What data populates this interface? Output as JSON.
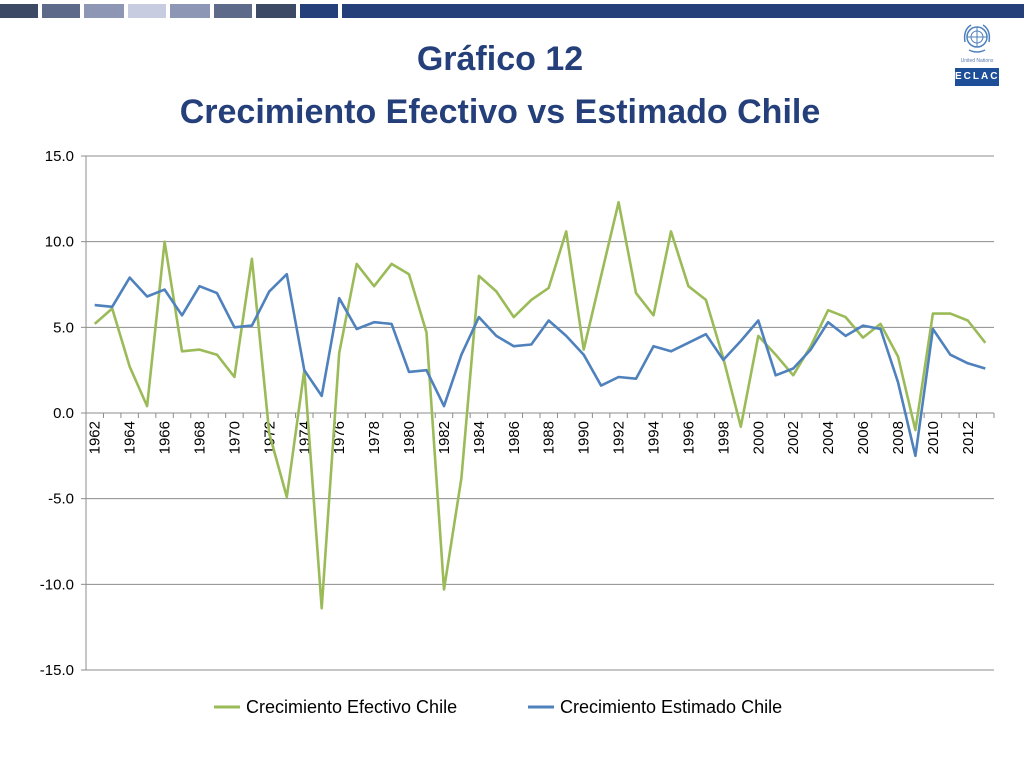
{
  "header": {
    "title_line1": "Gráfico 12",
    "title_line2": "Crecimiento Efectivo vs Estimado Chile"
  },
  "logo": {
    "org_small": "United Nations",
    "org_box": "ECLAC"
  },
  "colors": {
    "title": "#243f7a",
    "efectivo": "#9bbb59",
    "estimado": "#4f81bd",
    "grid": "#8c8c8c"
  },
  "chart_data": {
    "type": "line",
    "title": "Crecimiento Efectivo vs Estimado Chile",
    "x": [
      1962,
      1963,
      1964,
      1965,
      1966,
      1967,
      1968,
      1969,
      1970,
      1971,
      1972,
      1973,
      1974,
      1975,
      1976,
      1977,
      1978,
      1979,
      1980,
      1981,
      1982,
      1983,
      1984,
      1985,
      1986,
      1987,
      1988,
      1989,
      1990,
      1991,
      1992,
      1993,
      1994,
      1995,
      1996,
      1997,
      1998,
      1999,
      2000,
      2001,
      2002,
      2003,
      2004,
      2005,
      2006,
      2007,
      2008,
      2009,
      2010,
      2011,
      2012,
      2013
    ],
    "x_tick_labels": [
      "1962",
      "1964",
      "1966",
      "1968",
      "1970",
      "1972",
      "1974",
      "1976",
      "1978",
      "1980",
      "1982",
      "1984",
      "1986",
      "1988",
      "1990",
      "1992",
      "1994",
      "1996",
      "1998",
      "2000",
      "2002",
      "2004",
      "2006",
      "2008",
      "2010",
      "2012"
    ],
    "ylim": [
      -15,
      15
    ],
    "y_ticks": [
      "15.0",
      "10.0",
      "5.0",
      "0.0",
      "-5.0",
      "-10.0",
      "-15.0"
    ],
    "y_tick_values": [
      15,
      10,
      5,
      0,
      -5,
      -10,
      -15
    ],
    "grid": true,
    "legend": "bottom",
    "series": [
      {
        "name": "Crecimiento Efectivo Chile",
        "color": "#9bbb59",
        "values": [
          5.2,
          6.1,
          2.7,
          0.4,
          10.0,
          3.6,
          3.7,
          3.4,
          2.1,
          9.0,
          -1.2,
          -4.9,
          2.5,
          -11.4,
          3.5,
          8.7,
          7.4,
          8.7,
          8.1,
          4.7,
          -10.3,
          -3.8,
          8.0,
          7.1,
          5.6,
          6.6,
          7.3,
          10.6,
          3.7,
          8.0,
          12.3,
          7.0,
          5.7,
          10.6,
          7.4,
          6.6,
          3.2,
          -0.8,
          4.5,
          3.4,
          2.2,
          3.9,
          6.0,
          5.6,
          4.4,
          5.2,
          3.3,
          -1.0,
          5.8,
          5.8,
          5.4,
          4.1
        ]
      },
      {
        "name": "Crecimiento Estimado Chile",
        "color": "#4f81bd",
        "values": [
          6.3,
          6.2,
          7.9,
          6.8,
          7.2,
          5.7,
          7.4,
          7.0,
          5.0,
          5.1,
          7.1,
          8.1,
          2.5,
          1.0,
          6.7,
          4.9,
          5.3,
          5.2,
          2.4,
          2.5,
          0.4,
          3.4,
          5.6,
          4.5,
          3.9,
          4.0,
          5.4,
          4.5,
          3.4,
          1.6,
          2.1,
          2.0,
          3.9,
          3.6,
          4.1,
          4.6,
          3.1,
          4.2,
          5.4,
          2.2,
          2.6,
          3.7,
          5.3,
          4.5,
          5.1,
          4.9,
          1.8,
          -2.5,
          4.9,
          3.4,
          2.9,
          2.6
        ]
      }
    ]
  }
}
